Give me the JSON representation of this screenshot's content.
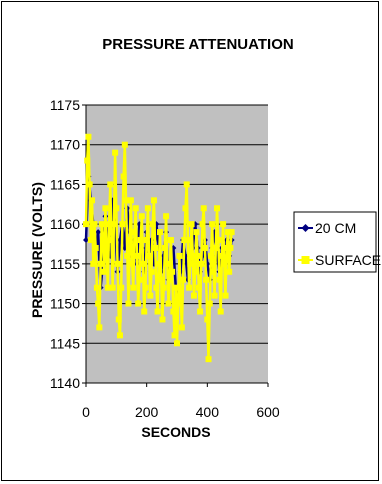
{
  "chart_data": {
    "type": "line",
    "title": "PRESSURE ATTENUATION",
    "xlabel": "SECONDS",
    "ylabel": "PRESSURE (VOLTS)",
    "xlim": [
      0,
      600
    ],
    "ylim": [
      1140,
      1175
    ],
    "x_ticks": [
      "0",
      "200",
      "400",
      "600"
    ],
    "y_ticks": [
      "1140",
      "1145",
      "1150",
      "1155",
      "1160",
      "1165",
      "1170",
      "1175"
    ],
    "grid": "horizontal",
    "plot_background": "#c0c0c0",
    "legend_position": "right",
    "series": [
      {
        "name": "20 CM",
        "color": "#000080",
        "marker": "diamond",
        "x": [
          0,
          8,
          16,
          24,
          32,
          40,
          48,
          56,
          64,
          72,
          80,
          88,
          96,
          104,
          112,
          120,
          128,
          136,
          144,
          152,
          160,
          168,
          176,
          184,
          192,
          200,
          208,
          216,
          224,
          232,
          240,
          248,
          256,
          264,
          272,
          280,
          288,
          296,
          304,
          312,
          320,
          328,
          336,
          344,
          352,
          360,
          368,
          376,
          384,
          392,
          400,
          408,
          416,
          424,
          432,
          440,
          448,
          456,
          464,
          472,
          480
        ],
        "y": [
          1158,
          1166,
          1163,
          1160,
          1157,
          1159,
          1152,
          1155,
          1161,
          1158,
          1156,
          1163,
          1160,
          1154,
          1158,
          1160,
          1157,
          1162,
          1159,
          1156,
          1158,
          1155,
          1160,
          1157,
          1154,
          1159,
          1156,
          1158,
          1155,
          1160,
          1157,
          1154,
          1156,
          1159,
          1153,
          1155,
          1157,
          1152,
          1150,
          1154,
          1158,
          1156,
          1153,
          1155,
          1157,
          1160,
          1157,
          1154,
          1156,
          1158,
          1155,
          1153,
          1157,
          1159,
          1156,
          1154,
          1157,
          1155,
          1158,
          1156,
          1158
        ]
      },
      {
        "name": "SURFACE",
        "color": "#ffff00",
        "marker": "square",
        "x": [
          0,
          4,
          8,
          12,
          16,
          20,
          24,
          28,
          32,
          36,
          40,
          44,
          48,
          52,
          56,
          60,
          64,
          68,
          72,
          76,
          80,
          84,
          88,
          92,
          96,
          100,
          104,
          108,
          112,
          116,
          120,
          124,
          128,
          132,
          136,
          140,
          144,
          148,
          152,
          156,
          160,
          164,
          168,
          172,
          176,
          180,
          184,
          188,
          192,
          196,
          200,
          204,
          208,
          212,
          216,
          220,
          224,
          228,
          232,
          236,
          240,
          244,
          248,
          252,
          256,
          260,
          264,
          268,
          272,
          276,
          280,
          284,
          288,
          292,
          296,
          300,
          304,
          308,
          312,
          316,
          320,
          324,
          328,
          332,
          336,
          340,
          344,
          348,
          352,
          356,
          360,
          364,
          368,
          372,
          376,
          380,
          384,
          388,
          392,
          396,
          400,
          404,
          408,
          412,
          416,
          420,
          424,
          428,
          432,
          436,
          440,
          444,
          448,
          452,
          456,
          460,
          464,
          468,
          472,
          476,
          480
        ],
        "y": [
          1160,
          1168,
          1171,
          1165,
          1158,
          1163,
          1155,
          1160,
          1157,
          1152,
          1150,
          1147,
          1155,
          1160,
          1158,
          1154,
          1162,
          1157,
          1152,
          1160,
          1165,
          1158,
          1152,
          1160,
          1169,
          1162,
          1155,
          1148,
          1146,
          1152,
          1160,
          1166,
          1170,
          1163,
          1156,
          1150,
          1158,
          1163,
          1155,
          1152,
          1159,
          1162,
          1156,
          1150,
          1153,
          1158,
          1161,
          1155,
          1149,
          1152,
          1158,
          1162,
          1156,
          1151,
          1154,
          1160,
          1163,
          1157,
          1152,
          1149,
          1155,
          1159,
          1153,
          1148,
          1152,
          1157,
          1161,
          1155,
          1150,
          1153,
          1158,
          1154,
          1149,
          1146,
          1152,
          1145,
          1150,
          1156,
          1151,
          1147,
          1153,
          1158,
          1162,
          1165,
          1158,
          1152,
          1155,
          1160,
          1156,
          1151,
          1154,
          1159,
          1156,
          1152,
          1149,
          1155,
          1160,
          1162,
          1157,
          1153,
          1148,
          1143,
          1150,
          1156,
          1160,
          1154,
          1151,
          1157,
          1162,
          1158,
          1153,
          1149,
          1156,
          1160,
          1155,
          1151,
          1157,
          1159,
          1154,
          1157,
          1159
        ]
      }
    ]
  }
}
